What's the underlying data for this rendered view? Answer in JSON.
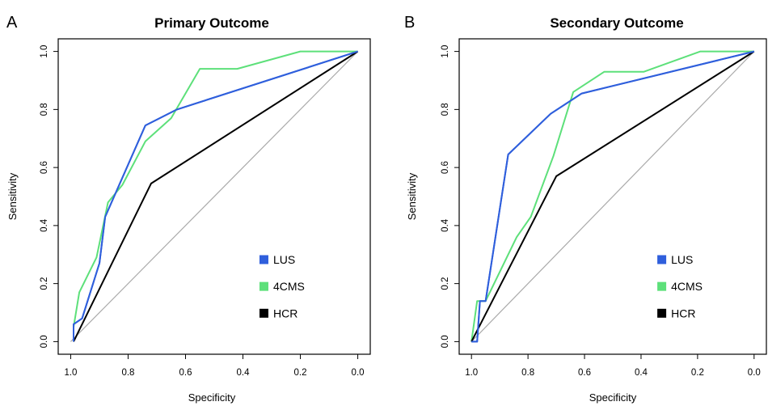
{
  "chart_data": [
    {
      "type": "line",
      "panel_label": "A",
      "title": "Primary Outcome",
      "xlabel": "Specificity",
      "ylabel": "Sensitivity",
      "x_reversed": true,
      "xlim": [
        1.0,
        0.0
      ],
      "ylim": [
        0.0,
        1.0
      ],
      "xticks": [
        "1.0",
        "0.8",
        "0.6",
        "0.4",
        "0.2",
        "0.0"
      ],
      "yticks": [
        "0.0",
        "0.2",
        "0.4",
        "0.6",
        "0.8",
        "1.0"
      ],
      "legend_position": "bottom-right",
      "series": [
        {
          "name": "LUS",
          "color": "#2f5fdc",
          "points": [
            [
              0.99,
              0.0
            ],
            [
              0.99,
              0.06
            ],
            [
              0.96,
              0.08
            ],
            [
              0.9,
              0.27
            ],
            [
              0.88,
              0.43
            ],
            [
              0.74,
              0.745
            ],
            [
              0.63,
              0.8
            ],
            [
              0.0,
              1.0
            ]
          ]
        },
        {
          "name": "4CMS",
          "color": "#5de07a",
          "points": [
            [
              0.99,
              0.0
            ],
            [
              0.99,
              0.05
            ],
            [
              0.97,
              0.17
            ],
            [
              0.94,
              0.23
            ],
            [
              0.91,
              0.29
            ],
            [
              0.87,
              0.48
            ],
            [
              0.82,
              0.54
            ],
            [
              0.74,
              0.69
            ],
            [
              0.65,
              0.77
            ],
            [
              0.55,
              0.94
            ],
            [
              0.42,
              0.94
            ],
            [
              0.2,
              1.0
            ],
            [
              0.0,
              1.0
            ]
          ]
        },
        {
          "name": "HCR",
          "color": "#000000",
          "points": [
            [
              0.99,
              0.0
            ],
            [
              0.72,
              0.545
            ],
            [
              0.0,
              1.0
            ]
          ]
        }
      ],
      "reference_line": [
        [
          1.0,
          0.0
        ],
        [
          0.0,
          1.0
        ]
      ]
    },
    {
      "type": "line",
      "panel_label": "B",
      "title": "Secondary Outcome",
      "xlabel": "Specificity",
      "ylabel": "Sensitivity",
      "x_reversed": true,
      "xlim": [
        1.0,
        0.0
      ],
      "ylim": [
        0.0,
        1.0
      ],
      "xticks": [
        "1.0",
        "0.8",
        "0.6",
        "0.4",
        "0.2",
        "0.0"
      ],
      "yticks": [
        "0.0",
        "0.2",
        "0.4",
        "0.6",
        "0.8",
        "1.0"
      ],
      "legend_position": "bottom-right",
      "series": [
        {
          "name": "LUS",
          "color": "#2f5fdc",
          "points": [
            [
              1.0,
              0.0
            ],
            [
              0.98,
              0.0
            ],
            [
              0.97,
              0.14
            ],
            [
              0.95,
              0.14
            ],
            [
              0.87,
              0.645
            ],
            [
              0.72,
              0.785
            ],
            [
              0.61,
              0.855
            ],
            [
              0.0,
              1.0
            ]
          ]
        },
        {
          "name": "4CMS",
          "color": "#5de07a",
          "points": [
            [
              1.0,
              0.0
            ],
            [
              0.99,
              0.07
            ],
            [
              0.98,
              0.14
            ],
            [
              0.95,
              0.14
            ],
            [
              0.84,
              0.36
            ],
            [
              0.79,
              0.43
            ],
            [
              0.71,
              0.64
            ],
            [
              0.64,
              0.86
            ],
            [
              0.53,
              0.93
            ],
            [
              0.39,
              0.93
            ],
            [
              0.19,
              1.0
            ],
            [
              0.0,
              1.0
            ]
          ]
        },
        {
          "name": "HCR",
          "color": "#000000",
          "points": [
            [
              1.0,
              0.0
            ],
            [
              0.7,
              0.57
            ],
            [
              0.0,
              1.0
            ]
          ]
        }
      ],
      "reference_line": [
        [
          1.0,
          0.0
        ],
        [
          0.0,
          1.0
        ]
      ]
    }
  ]
}
